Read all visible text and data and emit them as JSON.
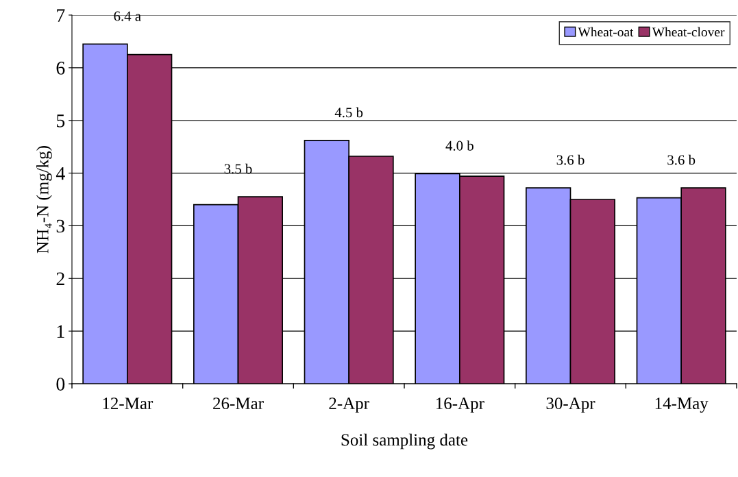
{
  "chart_data": {
    "type": "bar",
    "xlabel": "Soil sampling date",
    "ylabel": "NH₄-N (mg/kg)",
    "categories": [
      "12-Mar",
      "26-Mar",
      "2-Apr",
      "16-Apr",
      "30-Apr",
      "14-May"
    ],
    "series": [
      {
        "name": "Wheat-oat",
        "color": "#9999ff",
        "values": [
          6.45,
          3.4,
          4.62,
          3.99,
          3.72,
          3.53
        ]
      },
      {
        "name": "Wheat-clover",
        "color": "#993366",
        "values": [
          6.25,
          3.55,
          4.32,
          3.94,
          3.5,
          3.72
        ]
      }
    ],
    "annotations": [
      "6.4 a",
      "3.5 b",
      "4.5 b",
      "4.0 b",
      "3.6 b",
      "3.6 b"
    ],
    "ylim": [
      0,
      7
    ],
    "yticks": [
      0,
      1,
      2,
      3,
      4,
      5,
      6,
      7
    ],
    "grid": "y",
    "legend": "top right"
  }
}
